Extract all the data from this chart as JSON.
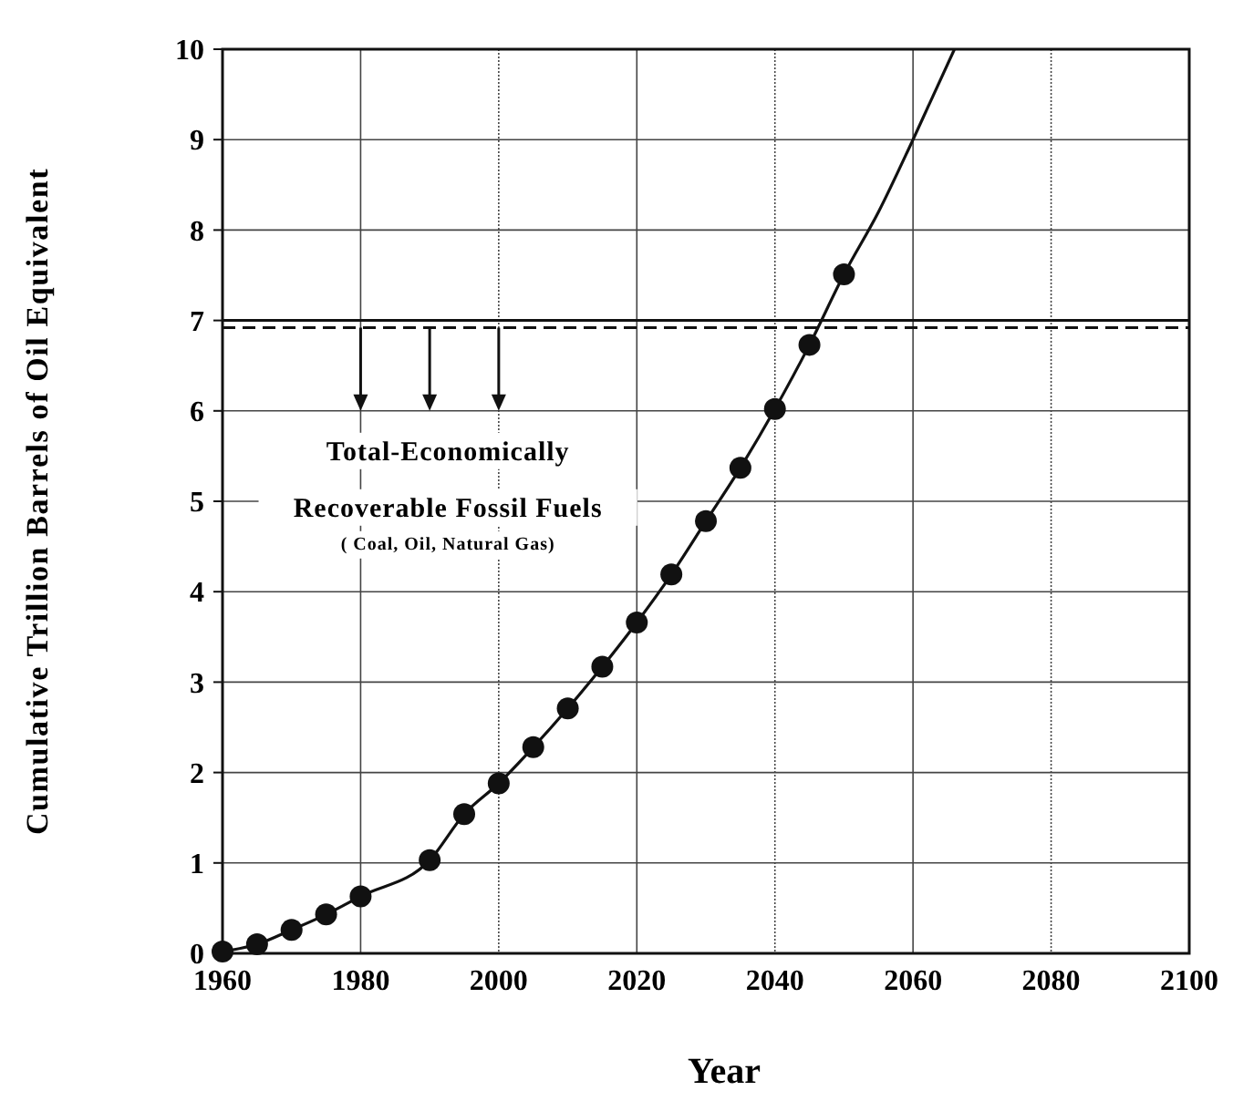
{
  "chart_data": {
    "type": "line",
    "xlabel": "Year",
    "ylabel": "Cumulative Trillion Barrels of Oil Equivalent",
    "xlim": [
      1960,
      2100
    ],
    "xticks": [
      1960,
      1980,
      2000,
      2020,
      2040,
      2060,
      2080,
      2100
    ],
    "ylim": [
      0,
      10
    ],
    "yticks": [
      0,
      1,
      2,
      3,
      4,
      5,
      6,
      7,
      8,
      9,
      10
    ],
    "grid": true,
    "series": [
      {
        "type": "line",
        "color": "#111111",
        "marker": "none",
        "line_style": "solid",
        "x": [
          1960,
          1965,
          1970,
          1975,
          1980,
          1990,
          1995,
          2000,
          2005,
          2010,
          2015,
          2020,
          2025,
          2030,
          2035,
          2040,
          2045,
          2050,
          2055,
          2060,
          2066
        ],
        "values": [
          0.02,
          0.1,
          0.26,
          0.43,
          0.63,
          1.03,
          1.54,
          1.88,
          2.28,
          2.71,
          3.17,
          3.66,
          4.19,
          4.78,
          5.37,
          6.02,
          6.73,
          7.51,
          8.2,
          9.0,
          10.0
        ]
      },
      {
        "type": "scatter",
        "color": "#111111",
        "marker": "circle",
        "x": [
          1960,
          1965,
          1970,
          1975,
          1980,
          1990,
          1995,
          2000,
          2005,
          2010,
          2015,
          2020,
          2025,
          2030,
          2035,
          2040,
          2045,
          2050
        ],
        "values": [
          0.02,
          0.1,
          0.26,
          0.43,
          0.63,
          1.03,
          1.54,
          1.88,
          2.28,
          2.71,
          3.17,
          3.66,
          4.19,
          4.78,
          5.37,
          6.02,
          6.73,
          7.51
        ]
      }
    ],
    "ref_lines": [
      {
        "axis": "y",
        "value": 7.0,
        "color": "#111111",
        "line_style": "solid"
      },
      {
        "axis": "y",
        "value": 6.92,
        "color": "#111111",
        "line_style": "dashed"
      }
    ],
    "annotations": [
      "Total-Economically",
      "Recoverable Fossil Fuels",
      "( Coal, Oil, Natural Gas)"
    ]
  }
}
